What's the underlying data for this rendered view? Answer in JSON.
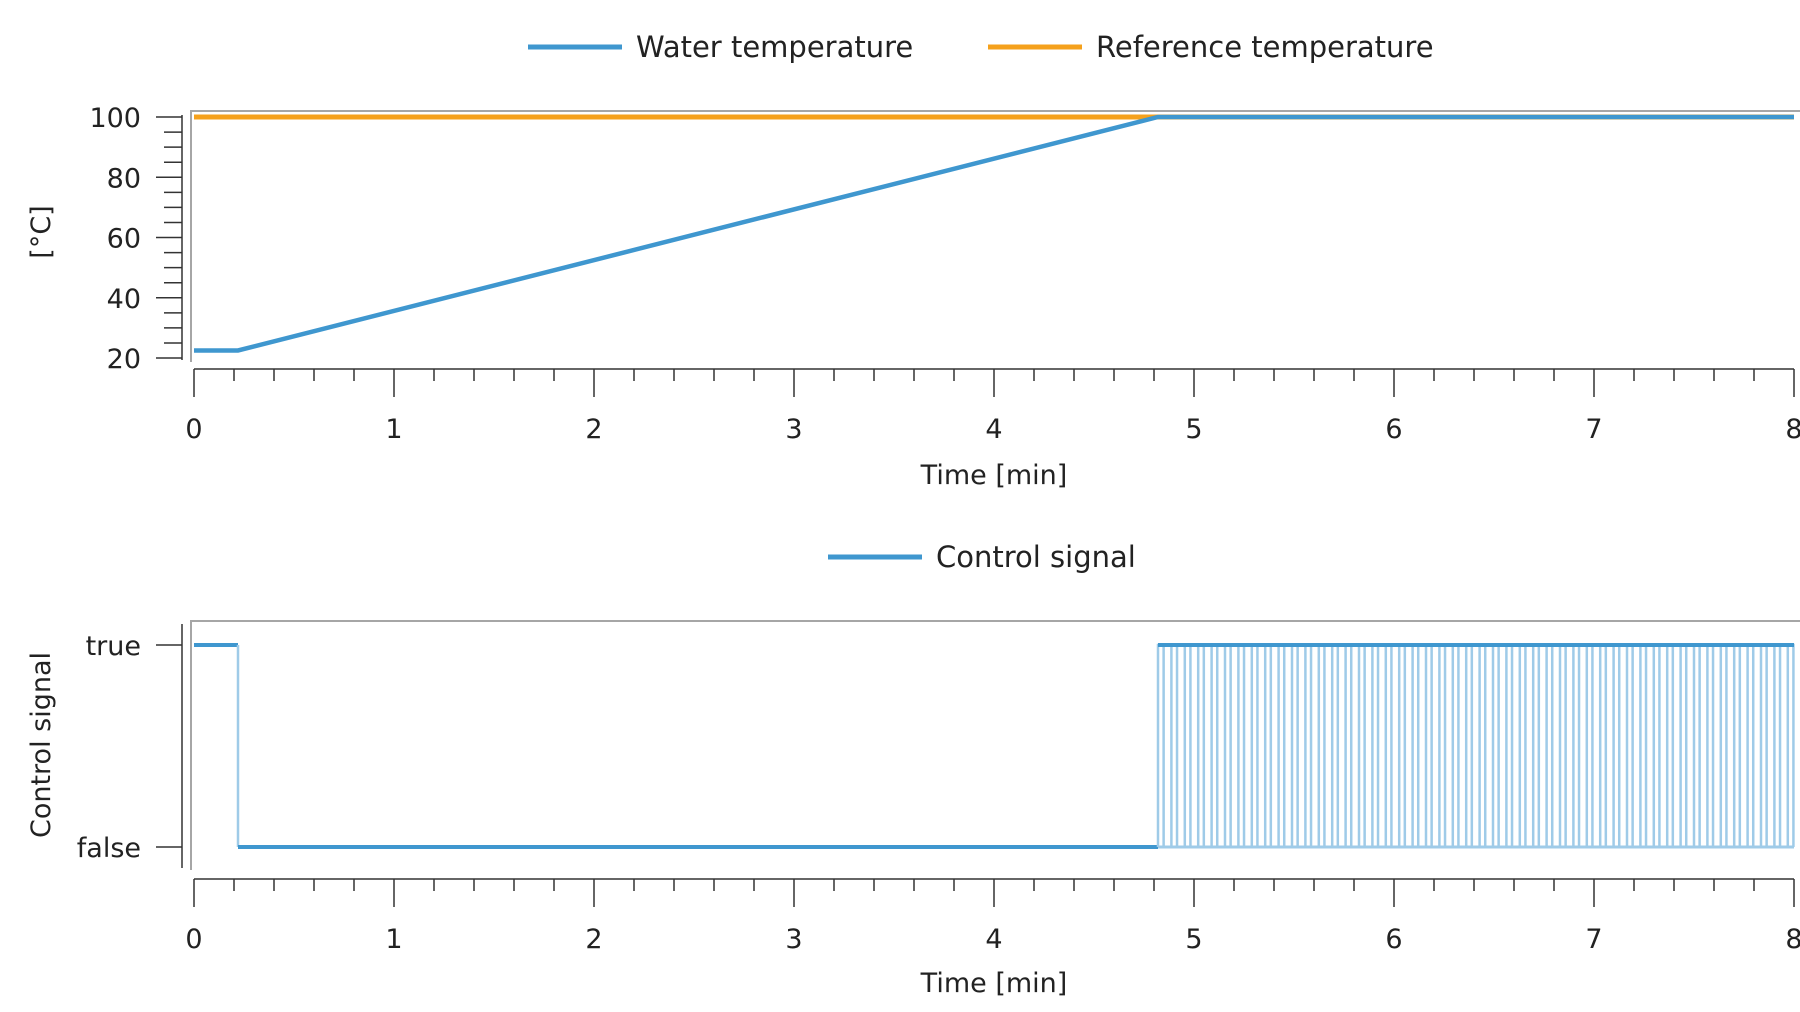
{
  "colors": {
    "water": "#3f97cf",
    "reference": "#f5a11c",
    "signal": "#3f97cf",
    "signal_transition": "#9fcbe8",
    "axis": "#333333",
    "frame": "#a6a6a6"
  },
  "chart_data": [
    {
      "type": "line",
      "title": "",
      "xlabel": "Time [min]",
      "ylabel": "[°C]",
      "xlim": [
        0,
        8
      ],
      "ylim": [
        20,
        100
      ],
      "x_ticks": [
        "0",
        "1",
        "2",
        "3",
        "4",
        "5",
        "6",
        "7",
        "8"
      ],
      "y_ticks": [
        "20",
        "40",
        "60",
        "80",
        "100"
      ],
      "legend": "top-center",
      "series": [
        {
          "name": "Water temperature",
          "x": [
            0,
            0.22,
            4.82,
            8
          ],
          "y": [
            22.5,
            22.5,
            100,
            100
          ]
        },
        {
          "name": "Reference temperature",
          "x": [
            0,
            8
          ],
          "y": [
            100,
            100
          ]
        }
      ]
    },
    {
      "type": "line",
      "title": "",
      "xlabel": "Time [min]",
      "ylabel": "Control signal",
      "xlim": [
        0,
        8
      ],
      "y_categories": [
        "false",
        "true"
      ],
      "x_ticks": [
        "0",
        "1",
        "2",
        "3",
        "4",
        "5",
        "6",
        "7",
        "8"
      ],
      "y_ticks": [
        "false",
        "true"
      ],
      "legend": "top-center",
      "series": [
        {
          "name": "Control signal",
          "step": true,
          "segments": [
            {
              "from": 0,
              "to": 0.22,
              "value": "true"
            },
            {
              "from": 0.22,
              "to": 4.82,
              "value": "false"
            },
            {
              "from": 4.82,
              "to": 8,
              "value": "switching true/false",
              "period_min": 0.067
            }
          ]
        }
      ]
    }
  ]
}
